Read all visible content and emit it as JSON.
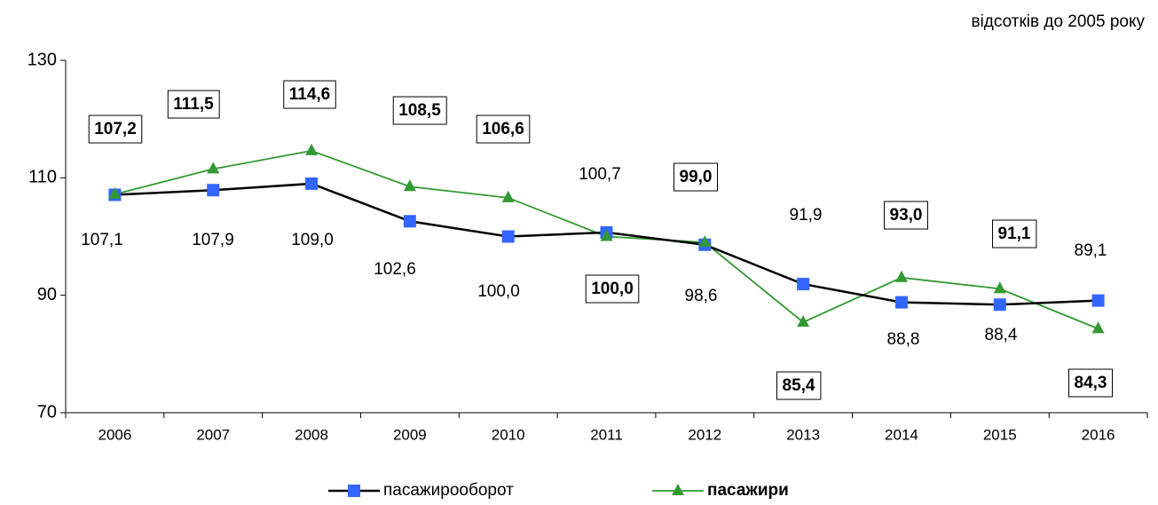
{
  "chart_data": {
    "type": "line",
    "subtitle": "відсотків до 2005 року",
    "categories": [
      "2006",
      "2007",
      "2008",
      "2009",
      "2010",
      "2011",
      "2012",
      "2013",
      "2014",
      "2015",
      "2016"
    ],
    "series": [
      {
        "name": "пасажирооборот",
        "color": "#000000",
        "marker_color": "#3366ff",
        "marker": "square",
        "values": [
          107.1,
          107.9,
          109.0,
          102.6,
          100.0,
          100.7,
          98.6,
          91.9,
          88.8,
          88.4,
          89.1
        ],
        "value_labels": [
          "107,1",
          "107,9",
          "109,0",
          "102,6",
          "100,0",
          "100,7",
          "98,6",
          "91,9",
          "88,8",
          "88,4",
          "89,1"
        ]
      },
      {
        "name": "пасажири",
        "color": "#339933",
        "marker_color": "#339933",
        "marker": "triangle",
        "values": [
          107.2,
          111.5,
          114.6,
          108.5,
          106.6,
          100.0,
          99.0,
          85.4,
          93.0,
          91.1,
          84.3
        ],
        "value_labels": [
          "107,2",
          "111,5",
          "114,6",
          "108,5",
          "106,6",
          "100,0",
          "99,0",
          "85,4",
          "93,0",
          "91,1",
          "84,3"
        ]
      }
    ],
    "ylim": [
      70,
      130
    ],
    "yticks": [
      70,
      90,
      110,
      130
    ],
    "grid": false,
    "legend": "bottom"
  }
}
